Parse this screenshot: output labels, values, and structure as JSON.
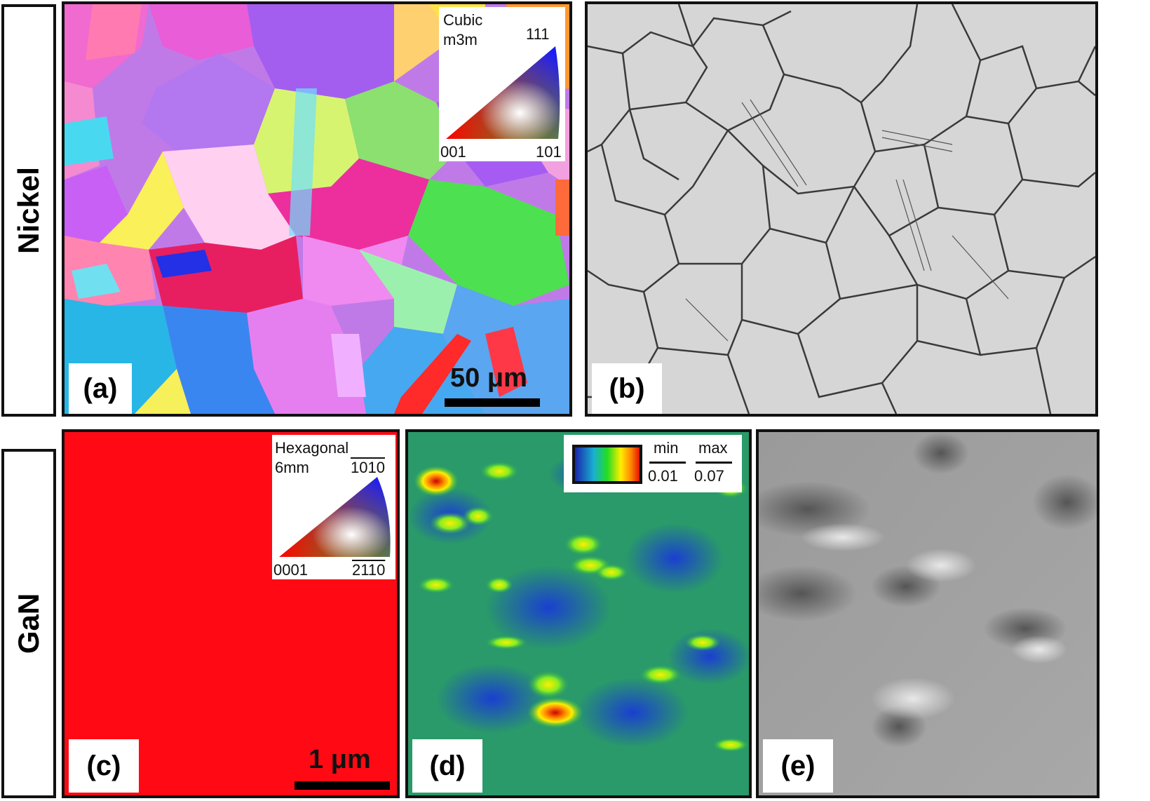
{
  "rows": [
    {
      "label": "Nickel"
    },
    {
      "label": "GaN"
    }
  ],
  "panels": {
    "a": {
      "tag": "(a)",
      "legend_title_1": "Cubic",
      "legend_title_2": "m3m",
      "corner_top": "111",
      "corner_left": "001",
      "corner_right": "101",
      "scalebar": "50 μm"
    },
    "b": {
      "tag": "(b)"
    },
    "c": {
      "tag": "(c)",
      "legend_title_1": "Hexagonal",
      "legend_title_2": "6mm",
      "corner_top": "1010",
      "corner_left": "0001",
      "corner_right": "2110",
      "scalebar": "1 μm"
    },
    "d": {
      "tag": "(d)",
      "min_label": "min",
      "max_label": "max",
      "min_value": "0.01",
      "max_value": "0.07"
    },
    "e": {
      "tag": "(e)"
    }
  },
  "colors": {
    "border": "#111111",
    "gan_red": "#ff0a14",
    "wedge_red": "#ff0000",
    "wedge_green": "#22dd22",
    "wedge_blue": "#1a1aff"
  }
}
